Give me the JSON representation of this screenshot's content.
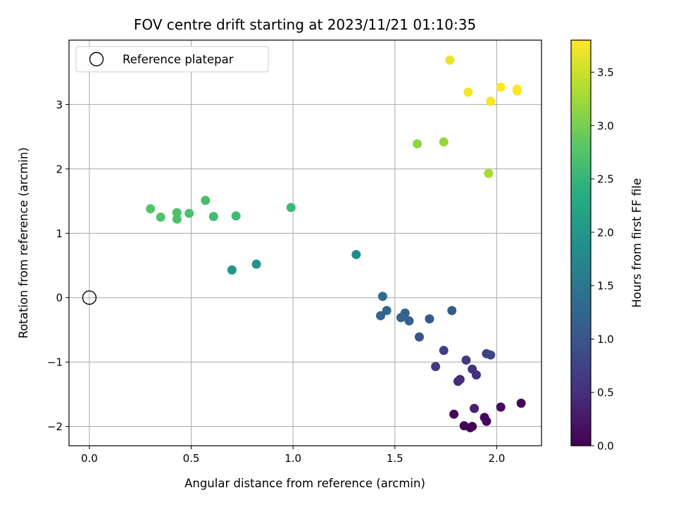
{
  "chart_data": {
    "type": "scatter",
    "title": "FOV centre drift starting at 2023/11/21 01:10:35",
    "xlabel": "Angular distance from reference (arcmin)",
    "ylabel": "Rotation from reference (arcmin)",
    "xlim": [
      -0.1,
      2.22
    ],
    "ylim": [
      -2.3,
      4.0
    ],
    "xticks": [
      0.0,
      0.5,
      1.0,
      1.5,
      2.0
    ],
    "xtick_labels": [
      "0.0",
      "0.5",
      "1.0",
      "1.5",
      "2.0"
    ],
    "yticks": [
      -2,
      -1,
      0,
      1,
      2,
      3
    ],
    "ytick_labels": [
      "−2",
      "−1",
      "0",
      "1",
      "2",
      "3"
    ],
    "grid": true,
    "legend": {
      "placement": "top-left",
      "entries": [
        "Reference platepar"
      ]
    },
    "reference_point": {
      "x": 0.0,
      "y": 0.0,
      "label": "Reference platepar"
    },
    "colorbar": {
      "label": "Hours from first FF file",
      "colormap": "viridis",
      "range": [
        0.0,
        3.8
      ],
      "ticks": [
        0.0,
        0.5,
        1.0,
        1.5,
        2.0,
        2.5,
        3.0,
        3.5
      ],
      "tick_labels": [
        "0.0",
        "0.5",
        "1.0",
        "1.5",
        "2.0",
        "2.5",
        "3.0",
        "3.5"
      ]
    },
    "points": [
      {
        "x": 2.12,
        "y": -1.64,
        "hours": 0.05
      },
      {
        "x": 2.02,
        "y": -1.7,
        "hours": 0.1
      },
      {
        "x": 1.95,
        "y": -1.92,
        "hours": 0.05
      },
      {
        "x": 1.94,
        "y": -1.86,
        "hours": 0.08
      },
      {
        "x": 1.88,
        "y": -2.0,
        "hours": 0.03
      },
      {
        "x": 1.87,
        "y": -2.02,
        "hours": 0.02
      },
      {
        "x": 1.84,
        "y": -1.99,
        "hours": 0.04
      },
      {
        "x": 1.79,
        "y": -1.81,
        "hours": 0.06
      },
      {
        "x": 1.89,
        "y": -1.72,
        "hours": 0.35
      },
      {
        "x": 1.9,
        "y": -1.2,
        "hours": 0.5
      },
      {
        "x": 1.88,
        "y": -1.11,
        "hours": 0.55
      },
      {
        "x": 1.82,
        "y": -1.27,
        "hours": 0.45
      },
      {
        "x": 1.81,
        "y": -1.3,
        "hours": 0.48
      },
      {
        "x": 1.7,
        "y": -1.07,
        "hours": 0.6
      },
      {
        "x": 1.85,
        "y": -0.97,
        "hours": 0.65
      },
      {
        "x": 1.74,
        "y": -0.82,
        "hours": 0.7
      },
      {
        "x": 1.95,
        "y": -0.87,
        "hours": 0.75
      },
      {
        "x": 1.97,
        "y": -0.89,
        "hours": 0.78
      },
      {
        "x": 1.62,
        "y": -0.61,
        "hours": 0.95
      },
      {
        "x": 1.67,
        "y": -0.33,
        "hours": 1.05
      },
      {
        "x": 1.78,
        "y": -0.2,
        "hours": 1.1
      },
      {
        "x": 1.57,
        "y": -0.36,
        "hours": 1.15
      },
      {
        "x": 1.55,
        "y": -0.24,
        "hours": 1.2
      },
      {
        "x": 1.53,
        "y": -0.31,
        "hours": 1.22
      },
      {
        "x": 1.43,
        "y": -0.28,
        "hours": 1.25
      },
      {
        "x": 1.46,
        "y": -0.2,
        "hours": 1.28
      },
      {
        "x": 1.44,
        "y": 0.02,
        "hours": 1.3
      },
      {
        "x": 1.31,
        "y": 0.67,
        "hours": 1.85
      },
      {
        "x": 0.82,
        "y": 0.52,
        "hours": 1.95
      },
      {
        "x": 0.7,
        "y": 0.43,
        "hours": 2.0
      },
      {
        "x": 0.99,
        "y": 1.4,
        "hours": 2.55
      },
      {
        "x": 0.72,
        "y": 1.27,
        "hours": 2.6
      },
      {
        "x": 0.61,
        "y": 1.26,
        "hours": 2.62
      },
      {
        "x": 0.57,
        "y": 1.51,
        "hours": 2.65
      },
      {
        "x": 0.49,
        "y": 1.31,
        "hours": 2.68
      },
      {
        "x": 0.43,
        "y": 1.32,
        "hours": 2.7
      },
      {
        "x": 0.43,
        "y": 1.22,
        "hours": 2.7
      },
      {
        "x": 0.35,
        "y": 1.25,
        "hours": 2.72
      },
      {
        "x": 0.3,
        "y": 1.38,
        "hours": 2.75
      },
      {
        "x": 1.61,
        "y": 2.39,
        "hours": 3.15
      },
      {
        "x": 1.74,
        "y": 2.42,
        "hours": 3.18
      },
      {
        "x": 1.96,
        "y": 1.93,
        "hours": 3.3
      },
      {
        "x": 1.77,
        "y": 3.69,
        "hours": 3.7
      },
      {
        "x": 1.86,
        "y": 3.19,
        "hours": 3.75
      },
      {
        "x": 1.97,
        "y": 3.05,
        "hours": 3.75
      },
      {
        "x": 2.02,
        "y": 3.27,
        "hours": 3.78
      },
      {
        "x": 2.1,
        "y": 3.24,
        "hours": 3.8
      },
      {
        "x": 2.1,
        "y": 3.21,
        "hours": 3.8
      }
    ]
  }
}
